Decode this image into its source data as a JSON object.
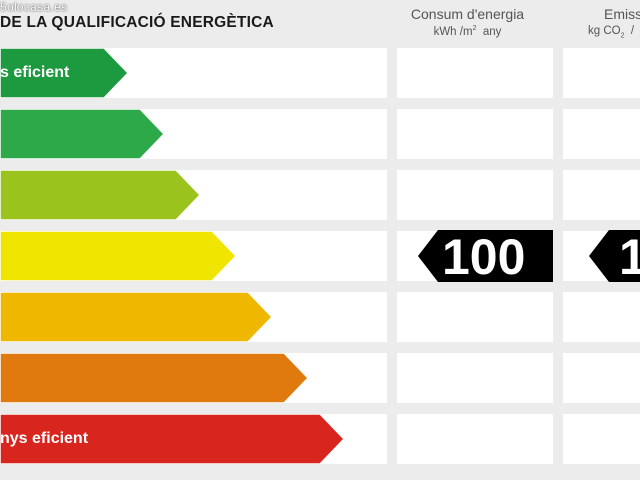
{
  "watermark": "5olocasa.es",
  "title": "DE LA QUALIFICACIÓ ENERGÈTICA",
  "columns": {
    "consumption": {
      "title": "Consum d'energia",
      "unit_main": "kWh /m",
      "unit_sup": "2",
      "unit_rest": "  any"
    },
    "emissions": {
      "title": "Emiss",
      "unit_main": "kg CO",
      "unit_sub": "2",
      "unit_rest": "  /"
    }
  },
  "rows": [
    {
      "label": "s eficient",
      "color": "#1d9a3f"
    },
    {
      "label": "",
      "color": "#2da94a"
    },
    {
      "label": "",
      "color": "#9bc31e"
    },
    {
      "label": "",
      "color": "#f0e500"
    },
    {
      "label": "",
      "color": "#f0b700"
    },
    {
      "label": "",
      "color": "#e07a0e"
    },
    {
      "label": "nys eficient",
      "color": "#d8261e"
    }
  ],
  "rating": {
    "row_index": 3,
    "consumption_value": "100",
    "emissions_value_partial": "1"
  }
}
